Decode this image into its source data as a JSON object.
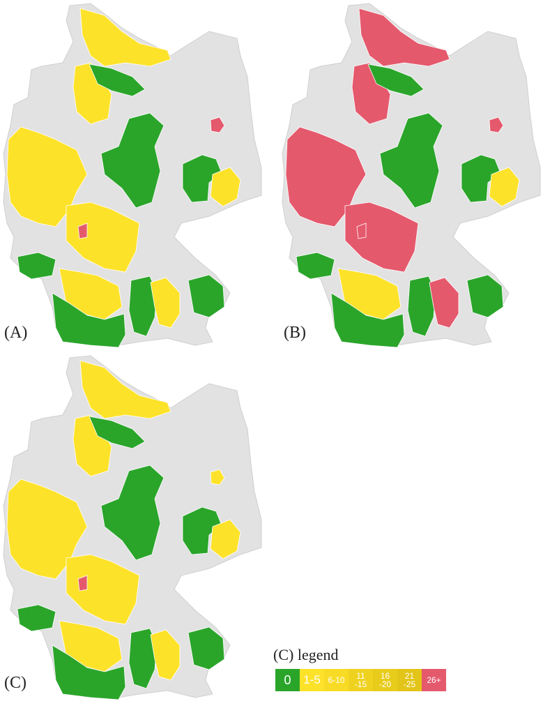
{
  "panels": [
    {
      "label": "(A)"
    },
    {
      "label": "(B)"
    },
    {
      "label": "(C)"
    }
  ],
  "legend": {
    "title": "(C) legend",
    "items": [
      {
        "label": "0",
        "color": "#2aa52a"
      },
      {
        "label": "1-5",
        "color": "#fde22a"
      },
      {
        "label": "6-10",
        "color": "#f8db25"
      },
      {
        "label": "11 -15",
        "color": "#efd220"
      },
      {
        "label": "16 -20",
        "color": "#e8cc1c"
      },
      {
        "label": "21 -25",
        "color": "#e2c518"
      },
      {
        "label": "26+",
        "color": "#e5596d"
      }
    ]
  },
  "colors": {
    "base": "#e2e2e2",
    "border": "#ffffff",
    "green": "#2aa52a",
    "yellow": "#fde22a",
    "red": "#e5596d"
  }
}
